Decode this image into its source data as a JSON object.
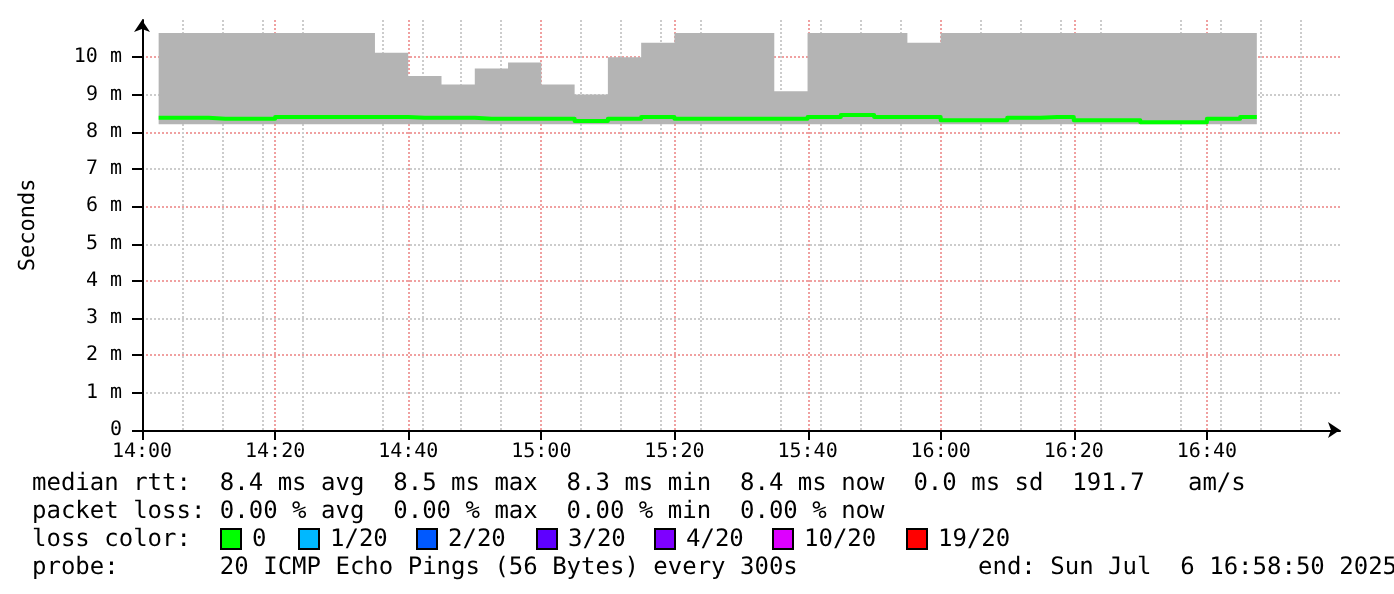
{
  "chart_data": {
    "type": "step",
    "ylabel": "Seconds",
    "xlim": [
      14,
      17
    ],
    "xticks": [
      {
        "value": 14,
        "label": "14:00"
      },
      {
        "value": 14.3333,
        "label": "14:20"
      },
      {
        "value": 14.6667,
        "label": "14:40"
      },
      {
        "value": 15,
        "label": "15:00"
      },
      {
        "value": 15.3333,
        "label": "15:20"
      },
      {
        "value": 15.6667,
        "label": "15:40"
      },
      {
        "value": 16,
        "label": "16:00"
      },
      {
        "value": 16.3333,
        "label": "16:20"
      },
      {
        "value": 16.6667,
        "label": "16:40"
      }
    ],
    "ylim": [
      0,
      11
    ],
    "yticks": [
      0,
      {
        "value": 1,
        "label": "1 m"
      },
      {
        "value": 2,
        "label": "2 m"
      },
      {
        "value": 3,
        "label": "3 m"
      },
      {
        "value": 4,
        "label": "4 m"
      },
      {
        "value": 5,
        "label": "5 m"
      },
      {
        "value": 6,
        "label": "6 m"
      },
      {
        "value": 7,
        "label": "7 m"
      },
      {
        "value": 8,
        "label": "8 m"
      },
      {
        "value": 9,
        "label": "9 m"
      },
      {
        "value": 10,
        "label": "10 m"
      }
    ],
    "grid": true,
    "marker": "none",
    "series": [
      {
        "color": "#00ff00",
        "x": [
          14.0417,
          14.125,
          14.2083,
          14.2917,
          14.375,
          14.4583,
          14.5417,
          14.625,
          14.7083,
          14.7917,
          14.875,
          14.9583,
          15.0417,
          15.125,
          15.2083,
          15.2917,
          15.375,
          15.4583,
          15.5417,
          15.625,
          15.7083,
          15.7917,
          15.875,
          15.9583,
          16.0417,
          16.125,
          16.2083,
          16.2917,
          16.375,
          16.4583,
          16.5417,
          16.625,
          16.7083,
          16.7917
        ],
        "values": [
          8.38,
          8.38,
          8.35,
          8.35,
          8.4,
          8.4,
          8.4,
          8.4,
          8.38,
          8.38,
          8.35,
          8.35,
          8.35,
          8.29,
          8.35,
          8.4,
          8.35,
          8.35,
          8.35,
          8.35,
          8.4,
          8.45,
          8.4,
          8.4,
          8.31,
          8.31,
          8.38,
          8.4,
          8.31,
          8.31,
          8.26,
          8.26,
          8.35,
          8.4
        ],
        "lower": [
          8.2,
          8.2,
          8.2,
          8.2,
          8.2,
          8.2,
          8.2,
          8.2,
          8.2,
          8.2,
          8.2,
          8.2,
          8.2,
          8.2,
          8.2,
          8.2,
          8.2,
          8.2,
          8.2,
          8.2,
          8.2,
          8.2,
          8.2,
          8.2,
          8.2,
          8.2,
          8.2,
          8.2,
          8.2,
          8.2,
          8.2,
          8.2,
          8.2,
          8.2
        ],
        "upper": [
          10.65,
          10.65,
          10.65,
          10.65,
          10.65,
          10.65,
          10.65,
          10.12,
          9.5,
          9.27,
          9.7,
          9.86,
          9.27,
          9.0,
          10.0,
          10.39,
          10.65,
          10.65,
          10.65,
          9.09,
          10.65,
          10.65,
          10.65,
          10.39,
          10.65,
          10.65,
          10.65,
          10.65,
          10.65,
          10.65,
          10.65,
          10.65,
          10.65,
          10.65
        ]
      }
    ],
    "annotations": [
      "median rtt:  8.4 ms avg  8.5 ms max  8.3 ms min  8.4 ms now  0.0 ms sd  191.7   am/s",
      "packet loss: 0.00 % avg  0.00 % max  0.00 % min  0.00 % now",
      "loss color:",
      "0",
      "1/20",
      "2/20",
      "3/20",
      "4/20",
      "10/20",
      "19/20",
      "probe:       20 ICMP Echo Pings (56 Bytes) every 300s",
      "end: Sun Jul  6 16:58:50 2025"
    ]
  }
}
